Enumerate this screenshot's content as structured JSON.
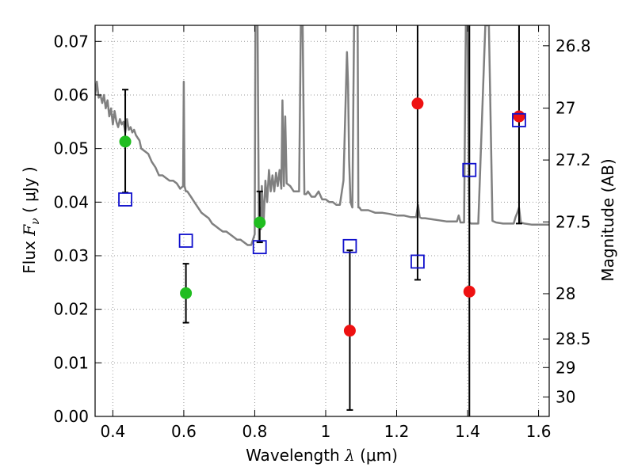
{
  "chart_data": {
    "type": "scatter",
    "xlabel": {
      "prefix": "Wavelength ",
      "var": "λ",
      "unit": " (μm)"
    },
    "ylabel": {
      "prefix": "Flux ",
      "var": "F",
      "sub": "ν",
      "unit": " ( μJy )"
    },
    "y2label": "Magnitude (AB)",
    "xlim": [
      0.35,
      1.63
    ],
    "ylim": [
      0.0,
      0.073
    ],
    "grid": true,
    "x_ticks": [
      0.4,
      0.6,
      0.8,
      1.0,
      1.2,
      1.4,
      1.6
    ],
    "x_tick_labels": [
      "0.4",
      "0.6",
      "0.8",
      "1",
      "1.2",
      "1.4",
      "1.6"
    ],
    "y_ticks": [
      0.0,
      0.01,
      0.02,
      0.03,
      0.04,
      0.05,
      0.06,
      0.07
    ],
    "y_tick_labels": [
      "0.00",
      "0.01",
      "0.02",
      "0.03",
      "0.04",
      "0.05",
      "0.06",
      "0.07"
    ],
    "y2_tick_labels": [
      "26.8",
      "27",
      "27.2",
      "27.5",
      "28",
      "28.5",
      "29",
      "30"
    ],
    "colors": {
      "spectrum": "#808080",
      "detected": "#1fbd1f",
      "upper_limit": "#ee1111",
      "model": "#0f0fcc",
      "errorbar": "#000000",
      "grid": "#9a9a9a"
    },
    "series": [
      {
        "kind": "detected",
        "x": [
          0.435,
          0.606,
          0.814
        ],
        "y": [
          0.0513,
          0.023,
          0.0362
        ],
        "err_low": [
          0.0418,
          0.0175,
          0.0325
        ],
        "err_high": [
          0.061,
          0.0285,
          0.042
        ]
      },
      {
        "kind": "upper_limit",
        "x": [
          1.068,
          1.259,
          1.405,
          1.545
        ],
        "y": [
          0.016,
          0.0584,
          0.0233,
          0.056
        ],
        "err_low": [
          0.0012,
          0.0255,
          0.0,
          0.036
        ],
        "err_high": [
          0.031,
          0.073,
          0.073,
          0.073
        ]
      },
      {
        "kind": "model",
        "x": [
          0.435,
          0.606,
          0.814,
          1.068,
          1.259,
          1.405,
          1.545
        ],
        "y": [
          0.0405,
          0.0328,
          0.0316,
          0.0318,
          0.0289,
          0.046,
          0.0553
        ]
      }
    ],
    "spectrum": {
      "x": [
        0.35,
        0.355,
        0.36,
        0.365,
        0.37,
        0.375,
        0.38,
        0.385,
        0.39,
        0.395,
        0.4,
        0.405,
        0.41,
        0.415,
        0.42,
        0.425,
        0.43,
        0.435,
        0.44,
        0.445,
        0.45,
        0.455,
        0.46,
        0.465,
        0.47,
        0.475,
        0.48,
        0.49,
        0.5,
        0.51,
        0.52,
        0.53,
        0.54,
        0.55,
        0.56,
        0.57,
        0.58,
        0.59,
        0.598,
        0.6,
        0.602,
        0.604,
        0.606,
        0.61,
        0.62,
        0.63,
        0.64,
        0.65,
        0.66,
        0.67,
        0.68,
        0.69,
        0.7,
        0.71,
        0.72,
        0.73,
        0.74,
        0.75,
        0.76,
        0.77,
        0.78,
        0.79,
        0.8,
        0.802,
        0.805,
        0.808,
        0.812,
        0.815,
        0.818,
        0.82,
        0.825,
        0.83,
        0.835,
        0.84,
        0.845,
        0.85,
        0.855,
        0.86,
        0.865,
        0.87,
        0.875,
        0.878,
        0.882,
        0.886,
        0.89,
        0.9,
        0.91,
        0.92,
        0.925,
        0.93,
        0.935,
        0.94,
        0.945,
        0.95,
        0.96,
        0.97,
        0.98,
        0.99,
        1.0,
        1.01,
        1.02,
        1.03,
        1.04,
        1.05,
        1.055,
        1.06,
        1.063,
        1.066,
        1.07,
        1.075,
        1.08,
        1.085,
        1.088,
        1.09,
        1.092,
        1.095,
        1.1,
        1.11,
        1.12,
        1.14,
        1.16,
        1.18,
        1.2,
        1.22,
        1.24,
        1.25,
        1.255,
        1.26,
        1.265,
        1.27,
        1.28,
        1.3,
        1.32,
        1.34,
        1.36,
        1.37,
        1.375,
        1.38,
        1.39,
        1.395,
        1.4,
        1.403,
        1.405,
        1.41,
        1.42,
        1.43,
        1.45,
        1.46,
        1.47,
        1.48,
        1.5,
        1.52,
        1.53,
        1.535,
        1.54,
        1.545,
        1.55,
        1.56,
        1.58,
        1.6,
        1.62,
        1.63
      ],
      "y": [
        0.06,
        0.0625,
        0.0595,
        0.06,
        0.0585,
        0.06,
        0.0575,
        0.059,
        0.056,
        0.0575,
        0.0545,
        0.057,
        0.055,
        0.054,
        0.0555,
        0.0545,
        0.055,
        0.053,
        0.0555,
        0.0535,
        0.054,
        0.053,
        0.0535,
        0.0525,
        0.052,
        0.0515,
        0.05,
        0.0495,
        0.049,
        0.0475,
        0.0465,
        0.045,
        0.045,
        0.0445,
        0.044,
        0.044,
        0.0435,
        0.0425,
        0.043,
        0.0625,
        0.043,
        0.0425,
        0.042,
        0.042,
        0.041,
        0.04,
        0.039,
        0.038,
        0.0375,
        0.037,
        0.036,
        0.0355,
        0.035,
        0.0345,
        0.0345,
        0.034,
        0.0335,
        0.033,
        0.033,
        0.0325,
        0.032,
        0.032,
        0.034,
        0.073,
        0.073,
        0.073,
        0.033,
        0.039,
        0.035,
        0.043,
        0.036,
        0.044,
        0.04,
        0.046,
        0.042,
        0.045,
        0.042,
        0.0455,
        0.043,
        0.046,
        0.0425,
        0.059,
        0.043,
        0.056,
        0.0435,
        0.043,
        0.042,
        0.042,
        0.042,
        0.073,
        0.073,
        0.0415,
        0.0415,
        0.042,
        0.041,
        0.041,
        0.042,
        0.0405,
        0.0405,
        0.04,
        0.04,
        0.0395,
        0.0395,
        0.044,
        0.056,
        0.068,
        0.062,
        0.048,
        0.04,
        0.039,
        0.073,
        0.073,
        0.073,
        0.073,
        0.039,
        0.039,
        0.0385,
        0.0385,
        0.0385,
        0.038,
        0.038,
        0.0378,
        0.0375,
        0.0375,
        0.0372,
        0.0372,
        0.0372,
        0.0395,
        0.0372,
        0.037,
        0.037,
        0.0368,
        0.0366,
        0.0364,
        0.0364,
        0.0364,
        0.0375,
        0.0362,
        0.0362,
        0.073,
        0.073,
        0.047,
        0.0362,
        0.036,
        0.036,
        0.036,
        0.073,
        0.073,
        0.0365,
        0.0362,
        0.036,
        0.036,
        0.036,
        0.0372,
        0.038,
        0.039,
        0.0362,
        0.036,
        0.0358,
        0.0358,
        0.0358,
        0.0358
      ]
    }
  }
}
